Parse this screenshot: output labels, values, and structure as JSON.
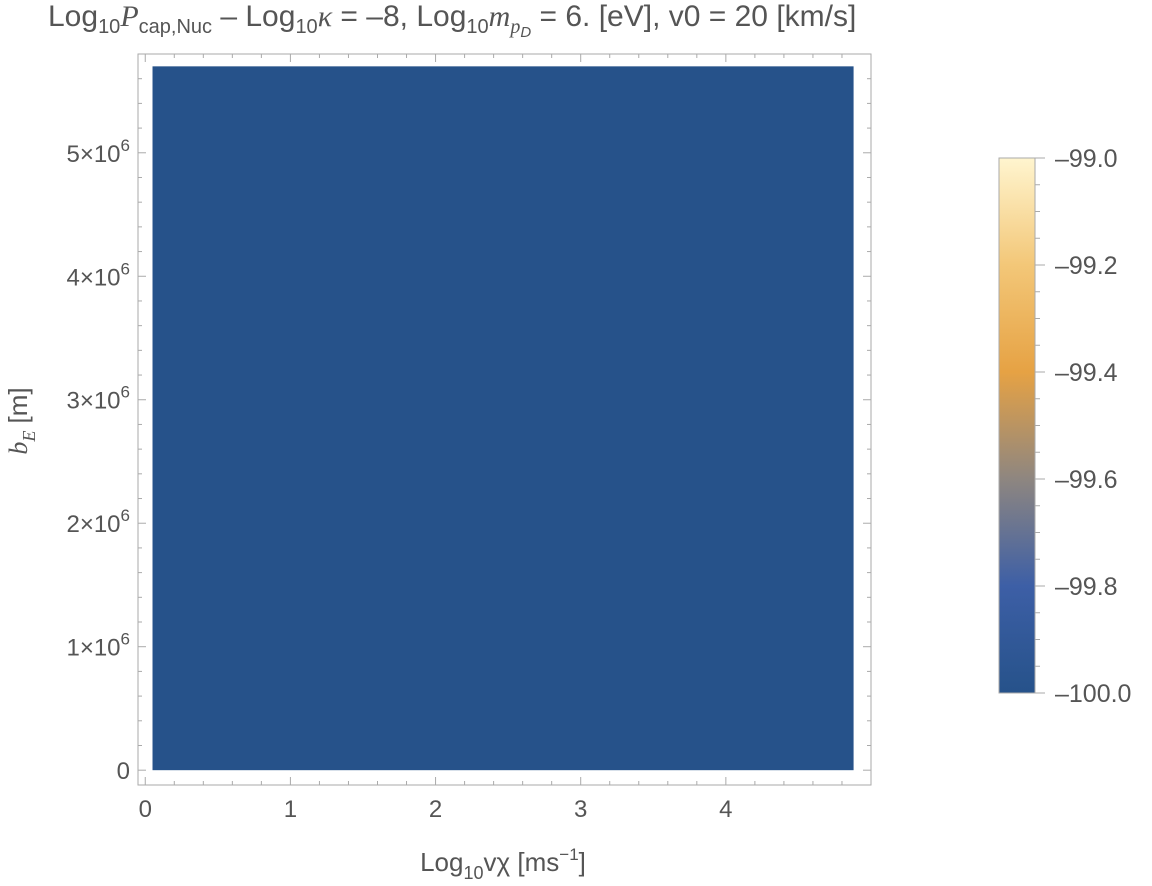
{
  "title": {
    "part1": "Log",
    "sub1": "10",
    "var1": "P",
    "sub_var1": "cap,Nuc",
    "part2": " – Log",
    "sub2": "10",
    "var2": "κ",
    "part3": " = –8, Log",
    "sub3": "10",
    "var3": "m",
    "sub_var3": "p",
    "subsub_var3": "D",
    "part4": " = 6. [eV], v0 = 20 [km/s]"
  },
  "chart_data": {
    "type": "heatmap",
    "title": "Log10Pcap,Nuc – Log10κ = –8, Log10mpD = 6. [eV], v0 = 20 [km/s]",
    "xlabel": "Log10vχ [ms^-1]",
    "ylabel": "bE [m]",
    "x_tick_values": [
      0,
      1,
      2,
      3,
      4
    ],
    "x_tick_labels": [
      "0",
      "1",
      "2",
      "3",
      "4"
    ],
    "y_tick_values": [
      0,
      1000000,
      2000000,
      3000000,
      4000000,
      5000000
    ],
    "y_tick_labels": [
      "0",
      "1×10^6",
      "2×10^6",
      "3×10^6",
      "4×10^6",
      "5×10^6"
    ],
    "xlim": [
      -0.05,
      5.0
    ],
    "ylim": [
      -120000,
      5800000
    ],
    "region": {
      "x": [
        0.05,
        4.88
      ],
      "y": [
        0,
        5700000
      ],
      "value": -100.0
    },
    "colorbar": {
      "min": -100.0,
      "max": -99.0,
      "tick_values": [
        -99.0,
        -99.2,
        -99.4,
        -99.6,
        -99.8,
        -100.0
      ],
      "tick_labels": [
        "–99.0",
        "–99.2",
        "–99.4",
        "–99.6",
        "–99.8",
        "–100.0"
      ],
      "gradient_colors": [
        "#26528a",
        "#3d5fa6",
        "#8e8680",
        "#e6a244",
        "#f3c778",
        "#fff5cf"
      ]
    },
    "grid": false
  },
  "labels": {
    "x_main": "Log",
    "x_sub": "10",
    "x_var": "vχ [ms",
    "x_sup": "−1",
    "x_close": "]",
    "y_var": "b",
    "y_sub": "E",
    "y_unit": " [m]"
  },
  "colors": {
    "fill": "#26528a",
    "frame": "#aaaaaa",
    "text": "#555555"
  }
}
